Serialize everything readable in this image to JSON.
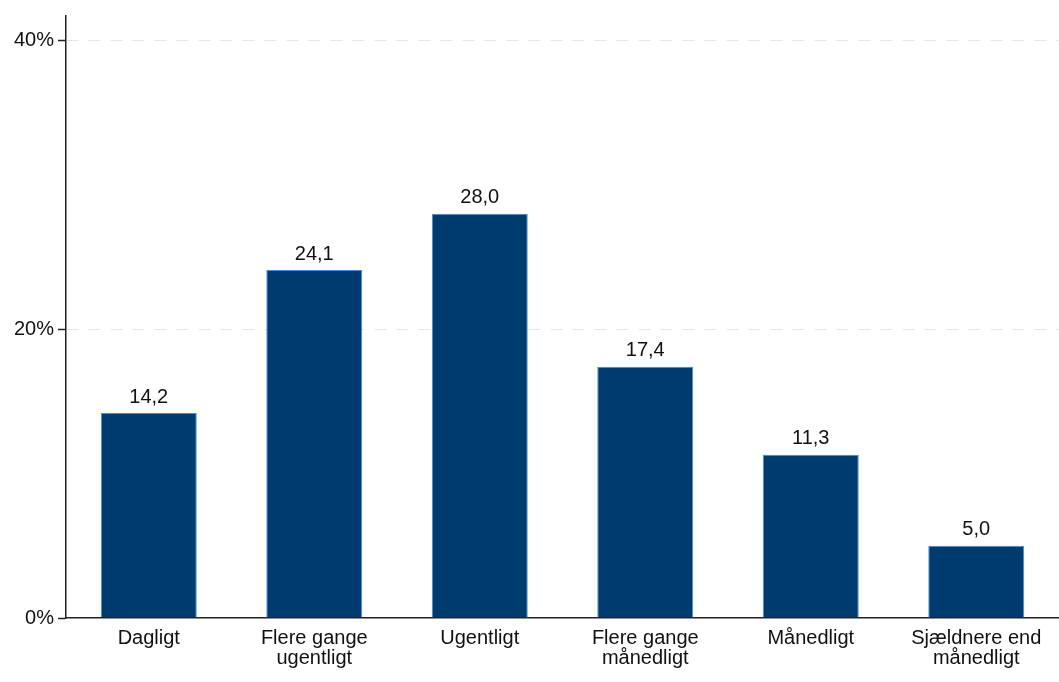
{
  "chart_data": {
    "type": "bar",
    "categories": [
      "Dagligt",
      "Flere gange ugentligt",
      "Ugentligt",
      "Flere gange månedligt",
      "Månedligt",
      "Sjældnere end månedligt"
    ],
    "values": [
      14.2,
      24.1,
      28.0,
      17.4,
      11.3,
      5.0
    ],
    "value_labels": [
      "14,2",
      "24,1",
      "28,0",
      "17,4",
      "11,3",
      "5,0"
    ],
    "color": "#003b70",
    "ylim": [
      0,
      41.7
    ],
    "yticks": [
      {
        "value": 0,
        "label": "0%"
      },
      {
        "value": 20,
        "label": "20%"
      },
      {
        "value": 40,
        "label": "40%"
      }
    ],
    "grid": "y",
    "legend": false
  }
}
